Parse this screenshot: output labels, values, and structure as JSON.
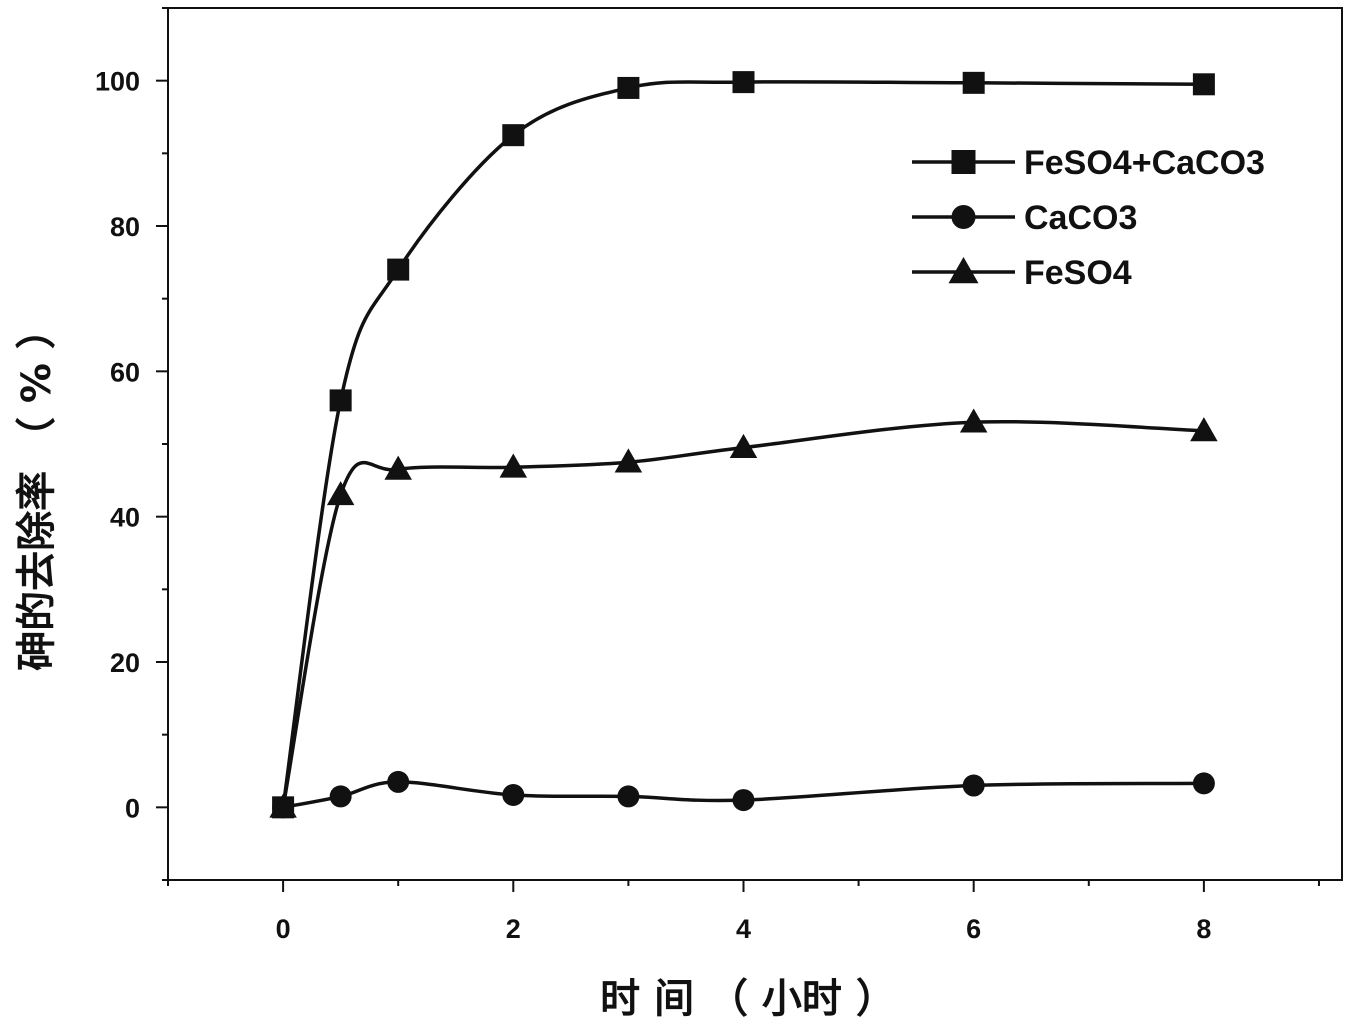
{
  "chart_data": {
    "type": "line",
    "title": "",
    "xlabel": "时 间 （ 小时 ）",
    "ylabel": "砷的去除率 （ % ）",
    "xlim": [
      -1,
      9.2
    ],
    "ylim": [
      -10,
      110
    ],
    "x_ticks": [
      0,
      2,
      4,
      6,
      8
    ],
    "y_ticks": [
      0,
      20,
      40,
      60,
      80,
      100
    ],
    "grid": false,
    "legend_position": "top-right",
    "x": [
      0,
      0.5,
      1,
      2,
      3,
      4,
      6,
      8
    ],
    "series": [
      {
        "name": "FeSO4+CaCO3",
        "marker": "square",
        "values": [
          0,
          56,
          74,
          92.5,
          99,
          99.8,
          99.7,
          99.5
        ]
      },
      {
        "name": "CaCO3",
        "marker": "circle",
        "values": [
          0,
          1.5,
          3.5,
          1.7,
          1.5,
          1,
          3,
          3.3
        ]
      },
      {
        "name": "FeSO4",
        "marker": "triangle",
        "values": [
          0,
          43,
          46.5,
          46.8,
          47.5,
          49.5,
          53,
          51.8
        ]
      }
    ]
  }
}
